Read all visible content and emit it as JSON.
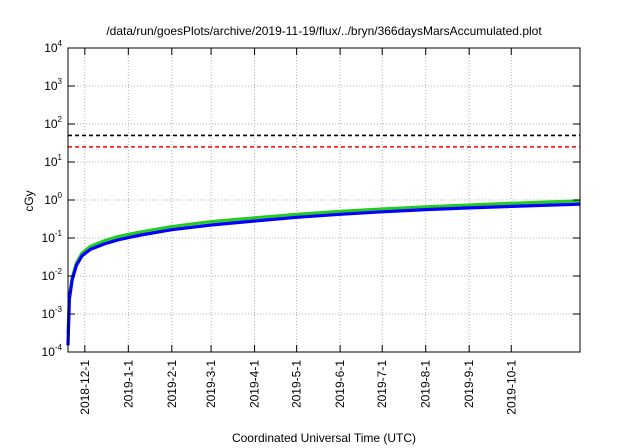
{
  "chart_data": {
    "type": "line",
    "title": "/data/run/goesPlots/archive/2019-11-19/flux/../bryn/366daysMarsAccumulated.plot",
    "xlabel": "Coordinated Universal Time (UTC)",
    "ylabel": "cGy",
    "yscale": "log",
    "ylim": [
      0.0001,
      10000
    ],
    "xlim": [
      "2018-11-19",
      "2019-11-19"
    ],
    "y_ticks": [
      {
        "base": "10",
        "exp": "-4",
        "value": 0.0001
      },
      {
        "base": "10",
        "exp": "-3",
        "value": 0.001
      },
      {
        "base": "10",
        "exp": "-2",
        "value": 0.01
      },
      {
        "base": "10",
        "exp": "-1",
        "value": 0.1
      },
      {
        "base": "10",
        "exp": "0",
        "value": 1
      },
      {
        "base": "10",
        "exp": "1",
        "value": 10
      },
      {
        "base": "10",
        "exp": "2",
        "value": 100
      },
      {
        "base": "10",
        "exp": "3",
        "value": 1000
      },
      {
        "base": "10",
        "exp": "4",
        "value": 10000
      }
    ],
    "x_ticks": [
      {
        "label": "2018-12-1",
        "date": "2018-12-01"
      },
      {
        "label": "2019-1-1",
        "date": "2019-01-01"
      },
      {
        "label": "2019-2-1",
        "date": "2019-02-01"
      },
      {
        "label": "2019-3-1",
        "date": "2019-03-01"
      },
      {
        "label": "2019-4-1",
        "date": "2019-04-01"
      },
      {
        "label": "2019-5-1",
        "date": "2019-05-01"
      },
      {
        "label": "2019-6-1",
        "date": "2019-06-01"
      },
      {
        "label": "2019-7-1",
        "date": "2019-07-01"
      },
      {
        "label": "2019-8-1",
        "date": "2019-08-01"
      },
      {
        "label": "2019-9-1",
        "date": "2019-09-01"
      },
      {
        "label": "2019-10-1",
        "date": "2019-10-01"
      }
    ],
    "grid": true,
    "reference_lines": [
      {
        "y": 50,
        "color": "#000000",
        "style": "dashed"
      },
      {
        "y": 25,
        "color": "#ff0000",
        "style": "dashed"
      }
    ],
    "series": [
      {
        "color": "#22cc22",
        "x": [
          "2018-11-19",
          "2018-11-20",
          "2018-11-22",
          "2018-11-25",
          "2018-11-29",
          "2018-12-05",
          "2018-12-15",
          "2018-12-25",
          "2019-01-10",
          "2019-02-01",
          "2019-03-01",
          "2019-04-01",
          "2019-05-01",
          "2019-06-01",
          "2019-07-01",
          "2019-08-01",
          "2019-09-01",
          "2019-10-01",
          "2019-11-19"
        ],
        "y": [
          0.0003,
          0.003,
          0.009,
          0.022,
          0.04,
          0.06,
          0.085,
          0.11,
          0.145,
          0.2,
          0.27,
          0.34,
          0.42,
          0.5,
          0.58,
          0.66,
          0.74,
          0.82,
          0.95
        ]
      },
      {
        "color": "#0000ff",
        "x": [
          "2018-11-19",
          "2018-11-20",
          "2018-11-22",
          "2018-11-25",
          "2018-11-29",
          "2018-12-05",
          "2018-12-15",
          "2018-12-25",
          "2019-01-10",
          "2019-02-01",
          "2019-03-01",
          "2019-04-01",
          "2019-05-01",
          "2019-06-01",
          "2019-07-01",
          "2019-08-01",
          "2019-09-01",
          "2019-10-01",
          "2019-11-19"
        ],
        "y": [
          0.00015,
          0.0025,
          0.008,
          0.019,
          0.034,
          0.05,
          0.07,
          0.09,
          0.12,
          0.165,
          0.22,
          0.28,
          0.35,
          0.42,
          0.49,
          0.56,
          0.62,
          0.68,
          0.78
        ]
      }
    ]
  }
}
